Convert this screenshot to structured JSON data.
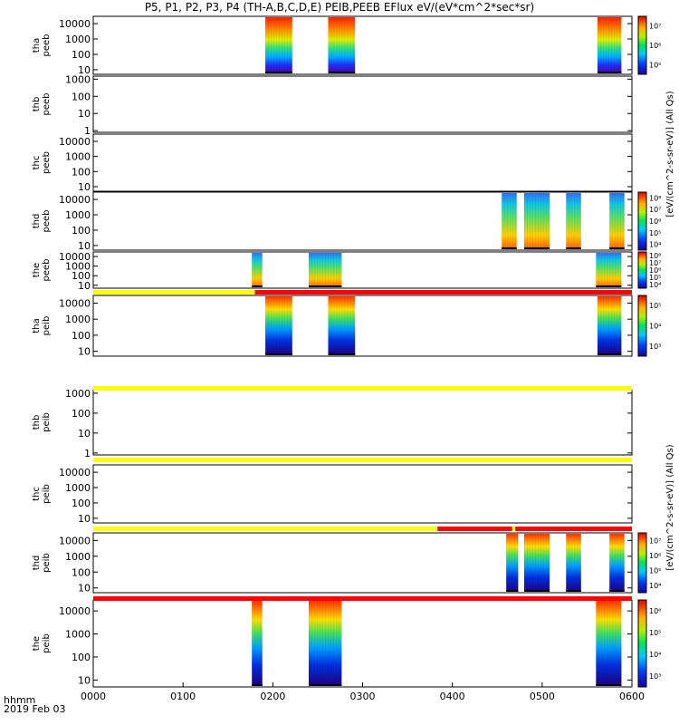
{
  "title": "P5, P1, P2, P3, P4 (TH-A,B,C,D,E) PEIB,PEEB EFlux eV/(eV*cm^2*sec*sr)",
  "time_label": "hhmm",
  "date_label": "2019 Feb 03",
  "x_ticks": [
    "0000",
    "0100",
    "0200",
    "0300",
    "0400",
    "0500",
    "0600"
  ],
  "colorbar_label_a": "[eV/(cm^2-s-sr-eV)] (All Qs)",
  "colorbar_label_b": "[eV/(cm^2-s-sr-eV)] (All Qs)",
  "colors": {
    "flag_yellow": "#ffff00",
    "flag_red": "#ff0000",
    "dot": "#000000"
  },
  "chart_data": [
    {
      "type": "heatmap",
      "panel": "tha_peeb",
      "label": [
        "tha",
        "peeb"
      ],
      "y_ticks": [
        "10",
        "100",
        "1000",
        "10000"
      ],
      "ylog": true,
      "ylim": [
        5,
        30000
      ],
      "cbar_ticks": [
        "10^5",
        "10^6",
        "10^7"
      ],
      "segments": [
        {
          "start": "01:55",
          "end": "02:13"
        },
        {
          "start": "02:37",
          "end": "02:55"
        },
        {
          "start": "05:37",
          "end": "05:53"
        }
      ]
    },
    {
      "type": "heatmap",
      "panel": "thb_peeb",
      "label": [
        "thb",
        "peeb"
      ],
      "y_ticks": [
        "1",
        "10",
        "100",
        "1000"
      ],
      "ylog": true,
      "ylim": [
        0.8,
        1500
      ],
      "segments": []
    },
    {
      "type": "heatmap",
      "panel": "thc_peeb",
      "label": [
        "thc",
        "peeb"
      ],
      "y_ticks": [
        "10",
        "100",
        "1000",
        "10000"
      ],
      "ylog": true,
      "ylim": [
        5,
        30000
      ],
      "segments": []
    },
    {
      "type": "heatmap",
      "panel": "thd_peeb",
      "label": [
        "thd",
        "peeb"
      ],
      "y_ticks": [
        "10",
        "100",
        "1000",
        "10000"
      ],
      "ylog": true,
      "ylim": [
        5,
        30000
      ],
      "cbar_ticks": [
        "10^4",
        "10^5",
        "10^6",
        "10^7",
        "10^8"
      ],
      "segments": [
        {
          "start": "04:33",
          "end": "04:43"
        },
        {
          "start": "04:48",
          "end": "05:05"
        },
        {
          "start": "05:16",
          "end": "05:26"
        },
        {
          "start": "05:45",
          "end": "05:55"
        }
      ]
    },
    {
      "type": "heatmap",
      "panel": "the_peeb",
      "label": [
        "the",
        "peeb"
      ],
      "y_ticks": [
        "10",
        "100",
        "1000",
        "10000"
      ],
      "ylog": true,
      "ylim": [
        5,
        30000
      ],
      "cbar_ticks": [
        "10^4",
        "10^5",
        "10^6",
        "10^7",
        "10^8"
      ],
      "segments": [
        {
          "start": "01:46",
          "end": "01:53"
        },
        {
          "start": "02:24",
          "end": "02:46"
        },
        {
          "start": "05:36",
          "end": "05:53"
        }
      ]
    },
    {
      "type": "heatmap",
      "panel": "tha_peib",
      "label": [
        "tha",
        "peib"
      ],
      "y_ticks": [
        "10",
        "100",
        "1000",
        "10000"
      ],
      "ylog": true,
      "ylim": [
        5,
        30000
      ],
      "cbar_ticks": [
        "10^3",
        "10^4",
        "10^5"
      ],
      "segments": [
        {
          "start": "01:55",
          "end": "02:13"
        },
        {
          "start": "02:37",
          "end": "02:55"
        },
        {
          "start": "05:37",
          "end": "05:53"
        }
      ]
    },
    {
      "type": "heatmap",
      "panel": "thb_peib",
      "label": [
        "thb",
        "peib"
      ],
      "y_ticks": [
        "1",
        "10",
        "100",
        "1000"
      ],
      "ylog": true,
      "ylim": [
        0.8,
        1500
      ],
      "segments": []
    },
    {
      "type": "heatmap",
      "panel": "thc_peib",
      "label": [
        "thc",
        "peib"
      ],
      "y_ticks": [
        "10",
        "100",
        "1000",
        "10000"
      ],
      "ylog": true,
      "ylim": [
        5,
        30000
      ],
      "segments": []
    },
    {
      "type": "heatmap",
      "panel": "thd_peib",
      "label": [
        "thd",
        "peib"
      ],
      "y_ticks": [
        "10",
        "100",
        "1000",
        "10000"
      ],
      "ylog": true,
      "ylim": [
        5,
        30000
      ],
      "cbar_ticks": [
        "10^4",
        "10^5",
        "10^6",
        "10^7"
      ],
      "segments": [
        {
          "start": "04:36",
          "end": "04:44"
        },
        {
          "start": "04:48",
          "end": "05:05"
        },
        {
          "start": "05:16",
          "end": "05:26"
        },
        {
          "start": "05:45",
          "end": "05:55"
        }
      ]
    },
    {
      "type": "heatmap",
      "panel": "the_peib",
      "label": [
        "the",
        "peib"
      ],
      "y_ticks": [
        "10",
        "100",
        "1000",
        "10000"
      ],
      "ylog": true,
      "ylim": [
        5,
        30000
      ],
      "cbar_ticks": [
        "10^3",
        "10^4",
        "10^5",
        "10^6"
      ],
      "segments": [
        {
          "start": "01:46",
          "end": "01:53"
        },
        {
          "start": "02:24",
          "end": "02:46"
        },
        {
          "start": "05:36",
          "end": "05:53"
        }
      ]
    }
  ],
  "flag_bars": [
    {
      "after_panel": 4,
      "segments": [
        {
          "start": "00:00",
          "end": "01:48",
          "state": "yellow"
        },
        {
          "start": "01:48",
          "end": "06:00",
          "state": "red"
        }
      ]
    },
    {
      "after_panel": 5,
      "segments": [
        {
          "start": "00:00",
          "end": "06:00",
          "state": "yellow"
        }
      ]
    },
    {
      "after_panel": 6,
      "segments": [
        {
          "start": "00:00",
          "end": "06:00",
          "state": "yellow"
        }
      ]
    },
    {
      "after_panel": 7,
      "segments": [
        {
          "start": "00:00",
          "end": "03:50",
          "state": "yellow"
        },
        {
          "start": "03:50",
          "end": "04:40",
          "state": "red"
        },
        {
          "start": "04:40",
          "end": "04:42",
          "state": "yellow"
        },
        {
          "start": "04:42",
          "end": "06:00",
          "state": "red"
        }
      ]
    },
    {
      "after_panel": 8,
      "segments": [
        {
          "start": "00:00",
          "end": "06:00",
          "state": "red"
        }
      ]
    }
  ]
}
